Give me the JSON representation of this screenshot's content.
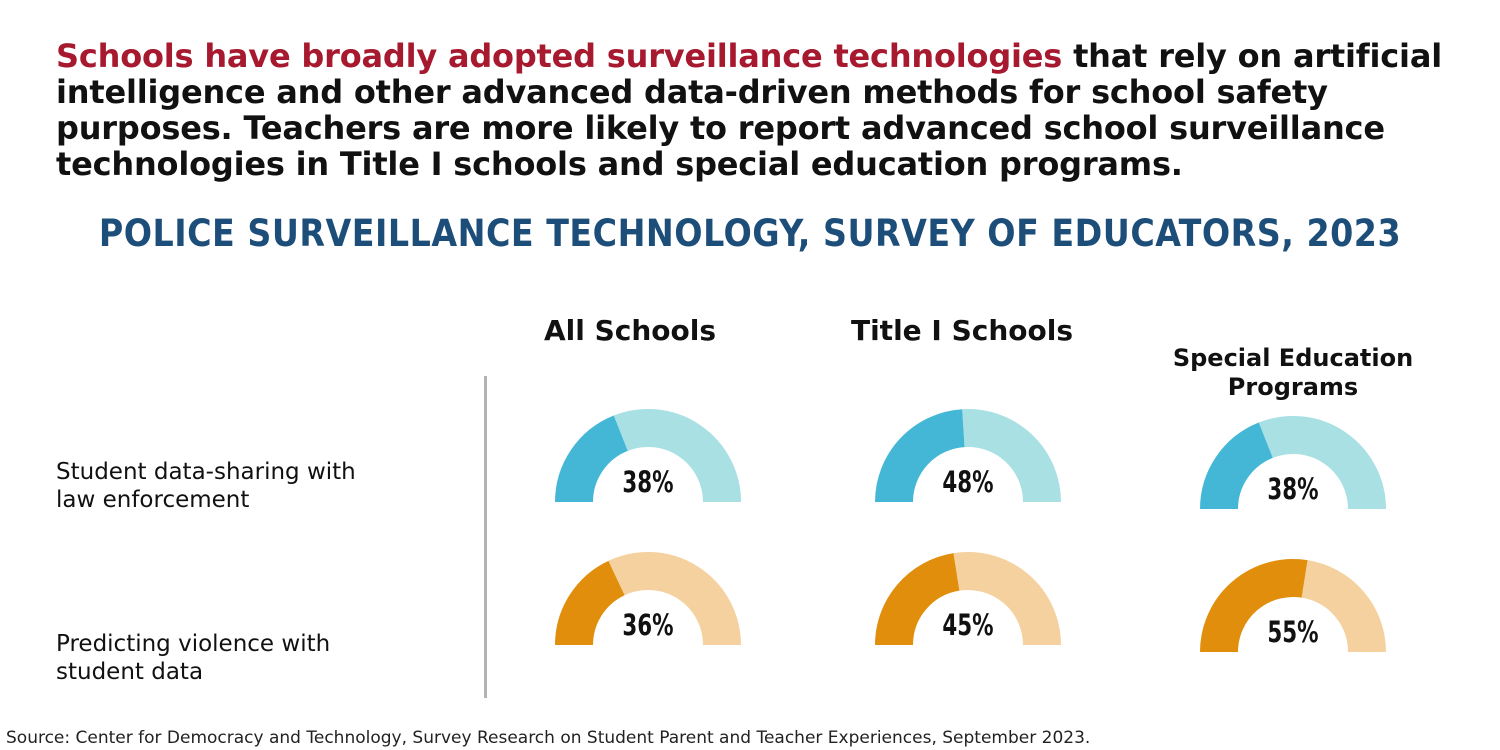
{
  "headline": {
    "highlight": "Schools have broadly adopted surveillance technologies",
    "rest": " that rely on artificial intelligence and other advanced data-driven methods for school safety purposes. Teachers are more likely to report advanced school surveillance technologies in Title I schools and special education programs."
  },
  "source": "Source: Center for Democracy and Technology, Survey Research on Student Parent and Teacher Experiences, September 2023.",
  "colors": {
    "highlight": "#a6192e",
    "title": "#1d4e7a",
    "blue_fill": "#45b7d6",
    "blue_track": "#a8e0e3",
    "orange_fill": "#e08e0b",
    "orange_track": "#f4d19f",
    "divider": "#b3b3b3"
  },
  "chart_data": {
    "type": "gauge",
    "title": "POLICE SURVEILLANCE TECHNOLOGY, SURVEY OF EDUCATORS, 2023",
    "categories": [
      "All Schools",
      "Title I Schools",
      "Special Education\nPrograms"
    ],
    "series": [
      {
        "name": "Student data-sharing with\nlaw enforcement",
        "values": [
          38,
          48,
          38
        ],
        "labels": [
          "38%",
          "48%",
          "38%"
        ],
        "color": "blue"
      },
      {
        "name": "Predicting violence with\nstudent data",
        "values": [
          36,
          45,
          55
        ],
        "labels": [
          "36%",
          "45%",
          "55%"
        ],
        "color": "orange"
      }
    ],
    "unit": "%",
    "range": [
      0,
      100
    ]
  }
}
